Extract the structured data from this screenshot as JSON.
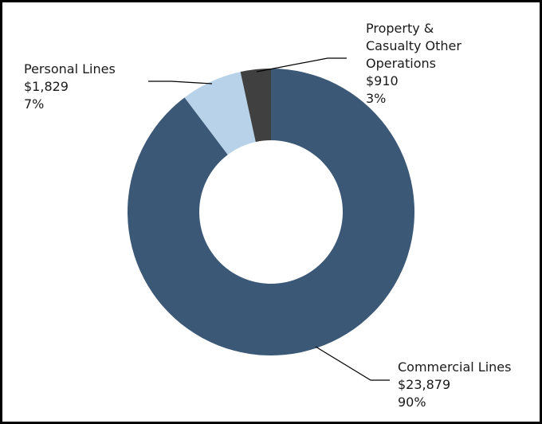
{
  "chart_data": {
    "type": "pie",
    "variant": "donut",
    "title": "",
    "legend": "none",
    "start_angle_deg": 0,
    "direction": "clockwise",
    "slices": [
      {
        "name": "Commercial Lines",
        "value": 23879,
        "value_label": "$23,879",
        "percent_label": "90%",
        "color": "#3b5876"
      },
      {
        "name": "Personal Lines",
        "value": 1829,
        "value_label": "$1,829",
        "percent_label": "7%",
        "color": "#b8d3e9"
      },
      {
        "name": "Property & Casualty Other Operations",
        "value": 910,
        "value_label": "$910",
        "percent_label": "3%",
        "color": "#404040"
      }
    ]
  },
  "colors": {
    "border": "#000000",
    "leader_line": "#000000",
    "text": "#1a1a1a",
    "background": "#ffffff"
  }
}
